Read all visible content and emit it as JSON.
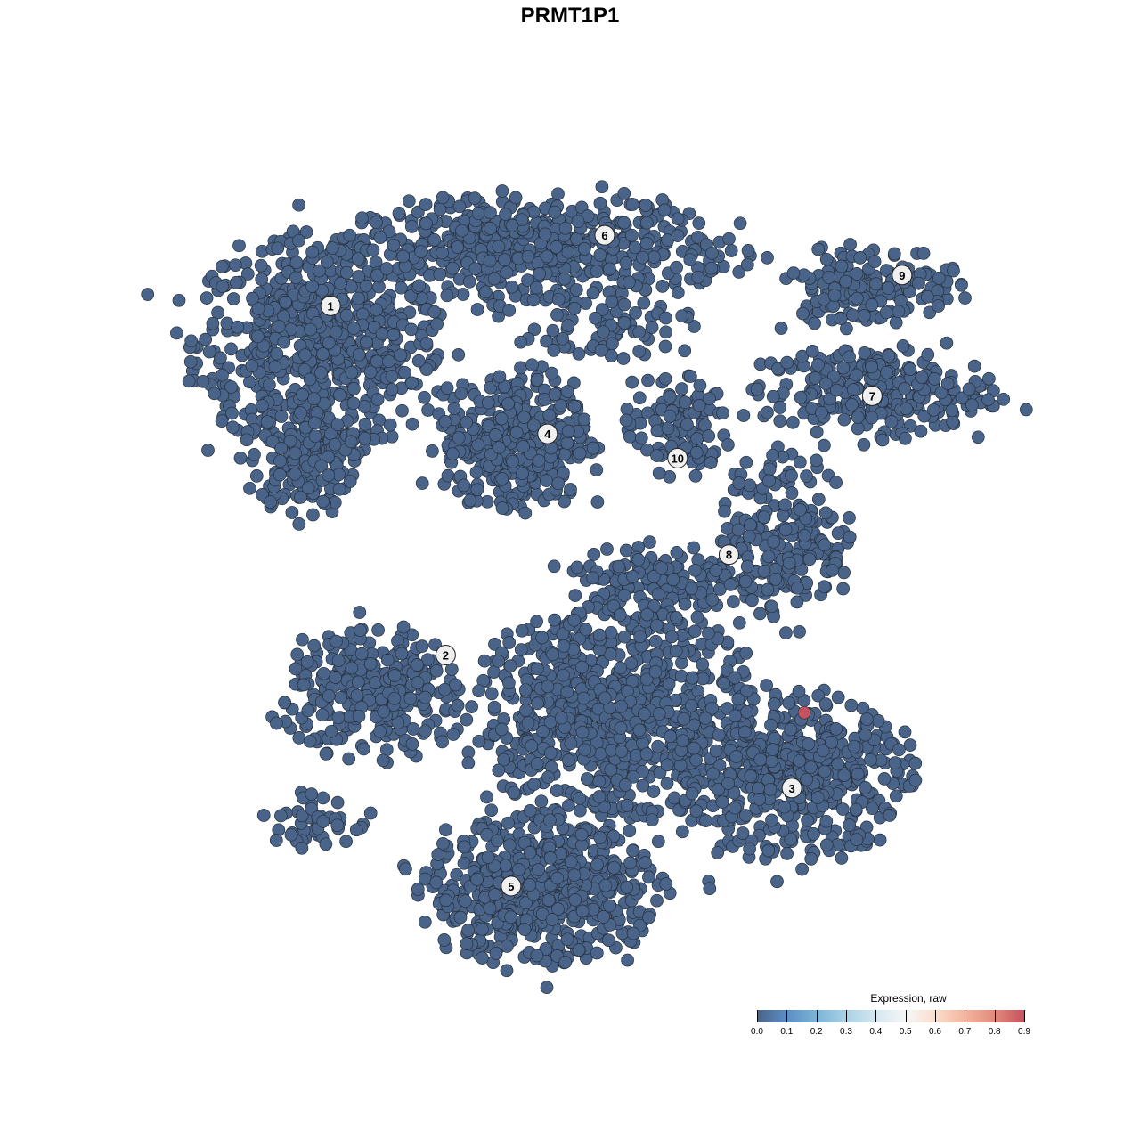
{
  "chart_data": {
    "type": "scatter",
    "title": "PRMT1P1",
    "xlabel": "",
    "ylabel": "",
    "xlim": [
      0,
      100
    ],
    "ylim": [
      0,
      100
    ],
    "grid": false,
    "axes_visible": false,
    "point_color": "#4a6489",
    "point_stroke": "#26303c",
    "highlight_color": "#c6515f",
    "cluster_labels": [
      {
        "label": "1",
        "x": 18.4,
        "y": 82.6
      },
      {
        "label": "6",
        "x": 51.5,
        "y": 91.3
      },
      {
        "label": "9",
        "x": 87.4,
        "y": 86.4
      },
      {
        "label": "7",
        "x": 83.8,
        "y": 71.5
      },
      {
        "label": "4",
        "x": 44.6,
        "y": 66.8
      },
      {
        "label": "10",
        "x": 60.3,
        "y": 63.8
      },
      {
        "label": "8",
        "x": 66.5,
        "y": 51.9
      },
      {
        "label": "2",
        "x": 32.3,
        "y": 39.5
      },
      {
        "label": "3",
        "x": 74.1,
        "y": 23.1
      },
      {
        "label": "5",
        "x": 40.2,
        "y": 11.0
      }
    ],
    "cluster_regions": [
      {
        "cluster": "1",
        "cx": 17.2,
        "cy": 78.0,
        "rx": 15,
        "ry": 13,
        "n": 650,
        "expression": 0.0
      },
      {
        "cluster": "1",
        "cx": 15.1,
        "cy": 63.2,
        "rx": 6.5,
        "ry": 6.6,
        "n": 150,
        "expression": 0.0
      },
      {
        "cluster": "6",
        "cx": 43.0,
        "cy": 89.6,
        "rx": 23.7,
        "ry": 6.6,
        "n": 550,
        "expression": 0.0
      },
      {
        "cluster": "6",
        "cx": 52.0,
        "cy": 80.0,
        "rx": 10,
        "ry": 4,
        "n": 70,
        "expression": 0.0
      },
      {
        "cluster": "4",
        "cx": 40.9,
        "cy": 66.0,
        "rx": 8.6,
        "ry": 8.8,
        "n": 380,
        "expression": 0.0
      },
      {
        "cluster": "9",
        "cx": 83.3,
        "cy": 85.2,
        "rx": 10.7,
        "ry": 5,
        "n": 170,
        "expression": 0.0
      },
      {
        "cluster": "7",
        "cx": 83.9,
        "cy": 72.0,
        "rx": 14,
        "ry": 5.5,
        "n": 260,
        "expression": 0.0
      },
      {
        "cluster": "10",
        "cx": 60.2,
        "cy": 67.6,
        "rx": 6.5,
        "ry": 6.6,
        "n": 110,
        "expression": 0.0
      },
      {
        "cluster": "8",
        "cx": 73.1,
        "cy": 54.4,
        "rx": 7.5,
        "ry": 9.9,
        "n": 220,
        "expression": 0.0
      },
      {
        "cluster": "8",
        "cx": 58.1,
        "cy": 48.9,
        "rx": 10.8,
        "ry": 4.4,
        "n": 140,
        "expression": 0.0
      },
      {
        "cluster": "2",
        "cx": 23.7,
        "cy": 34.6,
        "rx": 10.8,
        "ry": 7.7,
        "n": 300,
        "expression": 0.0
      },
      {
        "cluster": "2",
        "cx": 16.1,
        "cy": 19.2,
        "rx": 6,
        "ry": 3.3,
        "n": 45,
        "expression": 0.0
      },
      {
        "cluster": "center",
        "cx": 52.7,
        "cy": 32.4,
        "rx": 16,
        "ry": 13.2,
        "n": 800,
        "expression": 0.0
      },
      {
        "cluster": "3",
        "cx": 74.2,
        "cy": 24.7,
        "rx": 14,
        "ry": 9.9,
        "n": 500,
        "expression": 0.0
      },
      {
        "cluster": "5",
        "cx": 44.1,
        "cy": 10.4,
        "rx": 14,
        "ry": 8.8,
        "n": 600,
        "expression": 0.0
      }
    ],
    "highlight_points": [
      {
        "x": 75.6,
        "y": 32.4,
        "expression": 0.9
      }
    ],
    "legend": {
      "title": "Expression, raw",
      "placement": "bottom-right",
      "ticks": [
        "0.0",
        "0.1",
        "0.2",
        "0.3",
        "0.4",
        "0.5",
        "0.6",
        "0.7",
        "0.8",
        "0.9"
      ],
      "range": [
        0.0,
        0.9
      ]
    }
  }
}
